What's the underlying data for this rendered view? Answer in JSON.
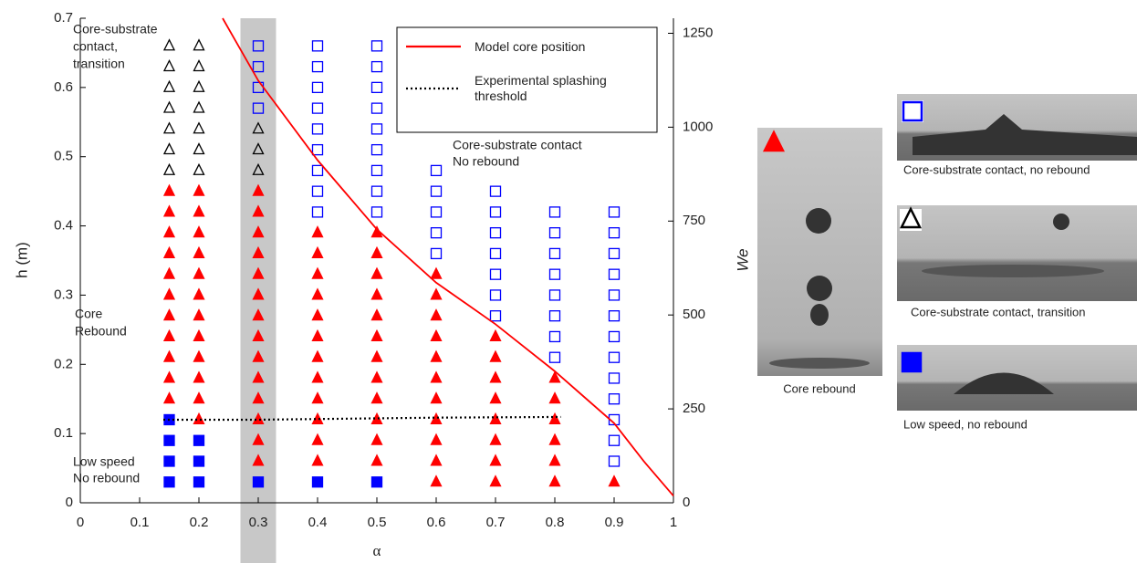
{
  "chart_data": {
    "type": "scatter",
    "x_label": "α",
    "y_label": "h (m)",
    "y2_label": "We",
    "xlim": [
      0,
      1
    ],
    "ylim": [
      0,
      0.7
    ],
    "y2lim": [
      0,
      1290
    ],
    "xticks": [
      0,
      0.1,
      0.2,
      0.3,
      0.4,
      0.5,
      0.6,
      0.7,
      0.8,
      0.9,
      1
    ],
    "yticks": [
      0,
      0.1,
      0.2,
      0.3,
      0.4,
      0.5,
      0.6,
      0.7
    ],
    "y2ticks": [
      0,
      250,
      500,
      750,
      1000,
      1250
    ],
    "shaded_band": [
      0.27,
      0.33
    ],
    "series": [
      {
        "name": "Core rebound",
        "color": "#ff0000",
        "marker": "triangle",
        "filled": true,
        "x": [
          0.15,
          0.15,
          0.15,
          0.15,
          0.15,
          0.15,
          0.15,
          0.15,
          0.15,
          0.15,
          0.15,
          0.2,
          0.2,
          0.2,
          0.2,
          0.2,
          0.2,
          0.2,
          0.2,
          0.2,
          0.2,
          0.2,
          0.2,
          0.3,
          0.3,
          0.3,
          0.3,
          0.3,
          0.3,
          0.3,
          0.3,
          0.3,
          0.3,
          0.3,
          0.3,
          0.3,
          0.3,
          0.4,
          0.4,
          0.4,
          0.4,
          0.4,
          0.4,
          0.4,
          0.4,
          0.4,
          0.4,
          0.4,
          0.4,
          0.5,
          0.5,
          0.5,
          0.5,
          0.5,
          0.5,
          0.5,
          0.5,
          0.5,
          0.5,
          0.5,
          0.5,
          0.6,
          0.6,
          0.6,
          0.6,
          0.6,
          0.6,
          0.6,
          0.6,
          0.6,
          0.6,
          0.6,
          0.7,
          0.7,
          0.7,
          0.7,
          0.7,
          0.7,
          0.7,
          0.7,
          0.8,
          0.8,
          0.8,
          0.8,
          0.8,
          0.8,
          0.9
        ],
        "values": [
          0.15,
          0.18,
          0.21,
          0.24,
          0.27,
          0.3,
          0.33,
          0.36,
          0.39,
          0.42,
          0.45,
          0.12,
          0.15,
          0.18,
          0.21,
          0.24,
          0.27,
          0.3,
          0.33,
          0.36,
          0.39,
          0.42,
          0.45,
          0.06,
          0.09,
          0.12,
          0.15,
          0.18,
          0.21,
          0.24,
          0.27,
          0.3,
          0.33,
          0.36,
          0.39,
          0.42,
          0.45,
          0.06,
          0.09,
          0.12,
          0.15,
          0.18,
          0.21,
          0.24,
          0.27,
          0.3,
          0.33,
          0.36,
          0.39,
          0.06,
          0.09,
          0.12,
          0.15,
          0.18,
          0.21,
          0.24,
          0.27,
          0.3,
          0.33,
          0.36,
          0.39,
          0.03,
          0.06,
          0.09,
          0.12,
          0.15,
          0.18,
          0.21,
          0.24,
          0.27,
          0.3,
          0.33,
          0.03,
          0.06,
          0.09,
          0.12,
          0.15,
          0.18,
          0.21,
          0.24,
          0.03,
          0.06,
          0.09,
          0.12,
          0.15,
          0.18,
          0.03
        ]
      },
      {
        "name": "Core-substrate contact, no rebound",
        "color": "#0000ff",
        "marker": "square",
        "filled": false,
        "x": [
          0.3,
          0.3,
          0.3,
          0.3,
          0.4,
          0.4,
          0.4,
          0.4,
          0.4,
          0.4,
          0.4,
          0.4,
          0.4,
          0.5,
          0.5,
          0.5,
          0.5,
          0.5,
          0.5,
          0.5,
          0.5,
          0.5,
          0.6,
          0.6,
          0.6,
          0.6,
          0.6,
          0.7,
          0.7,
          0.7,
          0.7,
          0.7,
          0.7,
          0.7,
          0.8,
          0.8,
          0.8,
          0.8,
          0.8,
          0.8,
          0.8,
          0.8,
          0.9,
          0.9,
          0.9,
          0.9,
          0.9,
          0.9,
          0.9,
          0.9,
          0.9,
          0.9,
          0.9,
          0.9,
          0.9
        ],
        "values": [
          0.57,
          0.6,
          0.63,
          0.66,
          0.42,
          0.45,
          0.48,
          0.51,
          0.54,
          0.57,
          0.6,
          0.63,
          0.66,
          0.42,
          0.45,
          0.48,
          0.51,
          0.54,
          0.57,
          0.6,
          0.63,
          0.66,
          0.36,
          0.39,
          0.42,
          0.45,
          0.48,
          0.27,
          0.3,
          0.33,
          0.36,
          0.39,
          0.42,
          0.45,
          0.21,
          0.24,
          0.27,
          0.3,
          0.33,
          0.36,
          0.39,
          0.42,
          0.06,
          0.09,
          0.12,
          0.15,
          0.18,
          0.21,
          0.24,
          0.27,
          0.3,
          0.33,
          0.36,
          0.39,
          0.42
        ]
      },
      {
        "name": "Core-substrate contact, transition",
        "color": "#000000",
        "marker": "triangle",
        "filled": false,
        "x": [
          0.15,
          0.15,
          0.15,
          0.15,
          0.15,
          0.15,
          0.15,
          0.2,
          0.2,
          0.2,
          0.2,
          0.2,
          0.2,
          0.2,
          0.3,
          0.3,
          0.3
        ],
        "values": [
          0.48,
          0.51,
          0.54,
          0.57,
          0.6,
          0.63,
          0.66,
          0.48,
          0.51,
          0.54,
          0.57,
          0.6,
          0.63,
          0.66,
          0.48,
          0.51,
          0.54
        ]
      },
      {
        "name": "Low speed, no rebound",
        "color": "#0000ff",
        "marker": "square",
        "filled": true,
        "x": [
          0.15,
          0.15,
          0.15,
          0.15,
          0.2,
          0.2,
          0.2,
          0.3,
          0.4,
          0.5
        ],
        "values": [
          0.03,
          0.06,
          0.09,
          0.12,
          0.03,
          0.06,
          0.09,
          0.03,
          0.03,
          0.03
        ]
      },
      {
        "name": "Model core position",
        "color": "#ff0000",
        "marker": "line",
        "style": "solid",
        "x": [
          0.24,
          0.3,
          0.4,
          0.5,
          0.6,
          0.7,
          0.8,
          0.9,
          0.95,
          1.0
        ],
        "values": [
          0.7,
          0.61,
          0.495,
          0.395,
          0.318,
          0.258,
          0.19,
          0.115,
          0.06,
          0.01
        ]
      },
      {
        "name": "Experimental splashing threshold",
        "color": "#000000",
        "marker": "line",
        "style": "dotted",
        "x": [
          0.14,
          0.3,
          0.5,
          0.6,
          0.81
        ],
        "values": [
          0.12,
          0.12,
          0.122,
          0.123,
          0.124
        ]
      }
    ],
    "annotations": [
      {
        "lines": [
          "Core-substrate",
          "contact,",
          "transition"
        ],
        "color": "#000000"
      },
      {
        "lines": [
          "Core-substrate contact",
          "No rebound"
        ],
        "color": "#0000ff"
      },
      {
        "lines": [
          "Core",
          "Rebound"
        ],
        "color": "#ff0000"
      },
      {
        "lines": [
          "Low speed",
          "No rebound"
        ],
        "color": "#0000ff"
      }
    ]
  }
}
